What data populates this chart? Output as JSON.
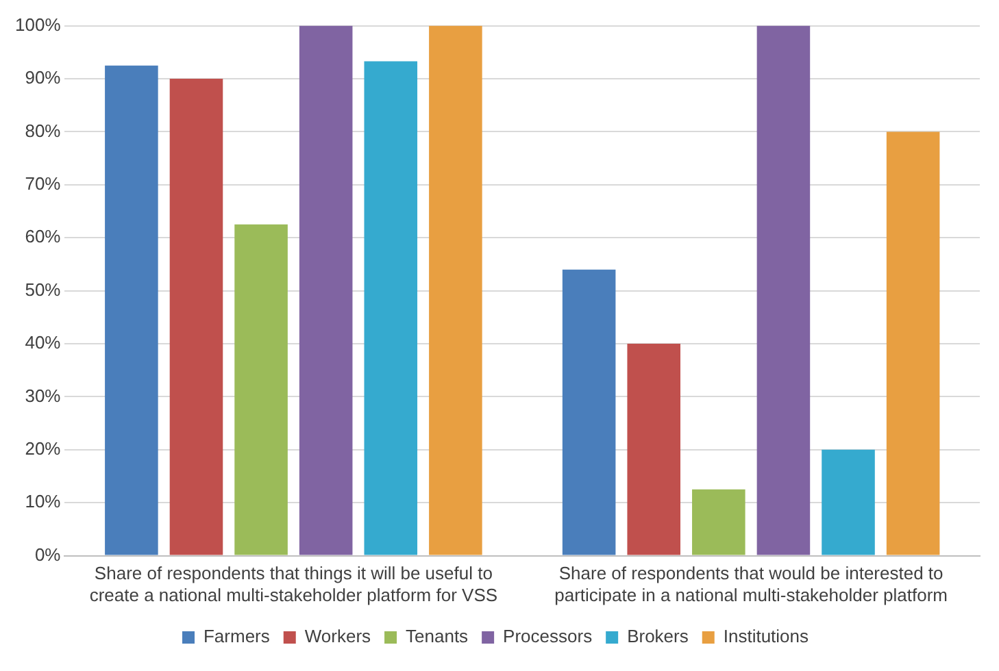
{
  "chart_data": {
    "type": "bar",
    "categories": [
      "Share of respondents that things it will be useful to create a national multi-stakeholder platform for VSS",
      "Share of respondents that would be interested to participate in a national multi-stakeholder platform"
    ],
    "series": [
      {
        "name": "Farmers",
        "color": "#4a7ebb",
        "values": [
          92.5,
          54
        ]
      },
      {
        "name": "Workers",
        "color": "#c0504d",
        "values": [
          90,
          40
        ]
      },
      {
        "name": "Tenants",
        "color": "#9bbb59",
        "values": [
          62.5,
          12.5
        ]
      },
      {
        "name": "Processors",
        "color": "#8064a2",
        "values": [
          100,
          100
        ]
      },
      {
        "name": "Brokers",
        "color": "#35aacf",
        "values": [
          93.3,
          20
        ]
      },
      {
        "name": "Institutions",
        "color": "#e89f41",
        "values": [
          100,
          80
        ]
      }
    ],
    "ylim": [
      0,
      100
    ],
    "yticks": [
      {
        "value": 0,
        "label": "0%"
      },
      {
        "value": 10,
        "label": "10%"
      },
      {
        "value": 20,
        "label": "20%"
      },
      {
        "value": 30,
        "label": "30%"
      },
      {
        "value": 40,
        "label": "40%"
      },
      {
        "value": 50,
        "label": "50%"
      },
      {
        "value": 60,
        "label": "60%"
      },
      {
        "value": 70,
        "label": "70%"
      },
      {
        "value": 80,
        "label": "80%"
      },
      {
        "value": 90,
        "label": "90%"
      },
      {
        "value": 100,
        "label": "100%"
      }
    ],
    "grid": "y",
    "legend": "bottom"
  }
}
